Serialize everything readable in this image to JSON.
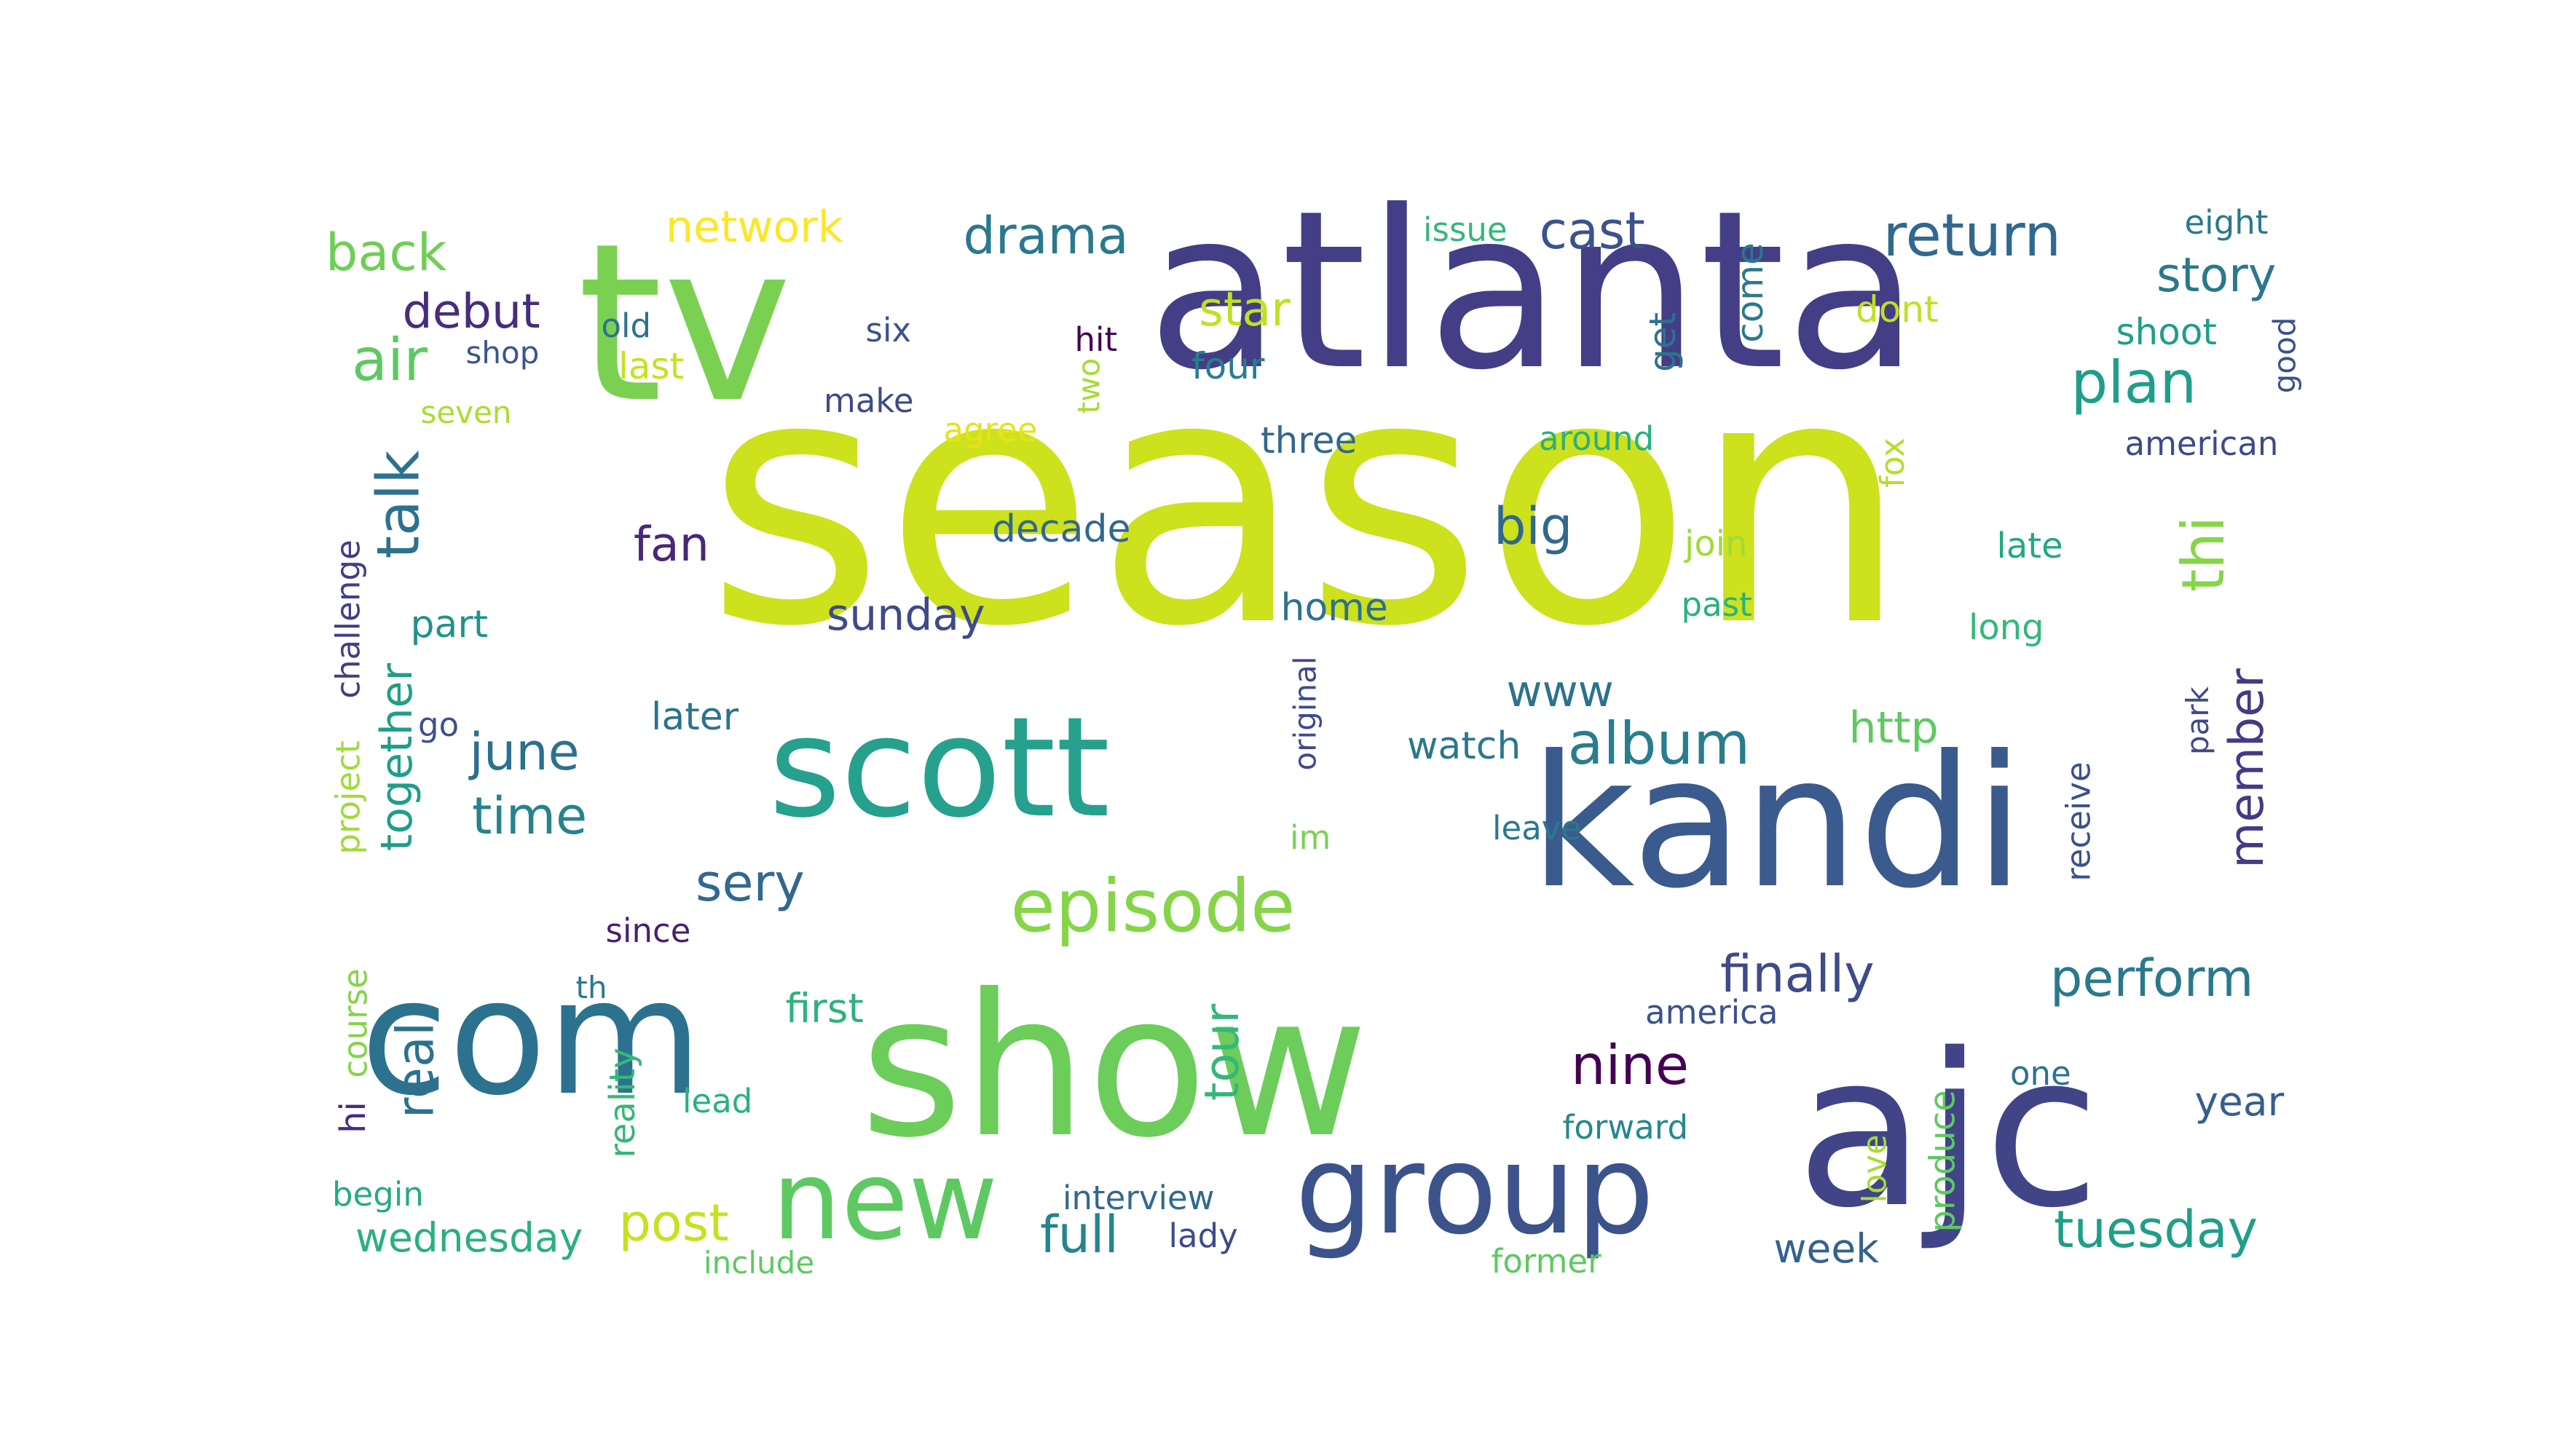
{
  "words": [
    {
      "text": "season",
      "color": "#cde11d"
    },
    {
      "text": "atlanta",
      "color": "#433e85"
    },
    {
      "text": "tv",
      "color": "#7ad151"
    },
    {
      "text": "show",
      "color": "#6ccd5a"
    },
    {
      "text": "kandi",
      "color": "#3b5a8d"
    },
    {
      "text": "ajc",
      "color": "#414487"
    },
    {
      "text": "scott",
      "color": "#25a18e"
    },
    {
      "text": "com",
      "color": "#2c728e"
    },
    {
      "text": "group",
      "color": "#3b528b"
    },
    {
      "text": "new",
      "color": "#5ec962"
    },
    {
      "text": "episode",
      "color": "#86d549"
    },
    {
      "text": "return",
      "color": "#31688e"
    },
    {
      "text": "drama",
      "color": "#2a788e"
    },
    {
      "text": "cast",
      "color": "#3b528b"
    },
    {
      "text": "network",
      "color": "#fde725"
    },
    {
      "text": "back",
      "color": "#6ece58"
    },
    {
      "text": "debut",
      "color": "#472d7b"
    },
    {
      "text": "air",
      "color": "#5ec962"
    },
    {
      "text": "star",
      "color": "#c2df23"
    },
    {
      "text": "story",
      "color": "#2a788e"
    },
    {
      "text": "plan",
      "color": "#1f9e89"
    },
    {
      "text": "talk",
      "color": "#2c728e"
    },
    {
      "text": "thi",
      "color": "#86d549"
    },
    {
      "text": "fan",
      "color": "#482878"
    },
    {
      "text": "big",
      "color": "#31688e"
    },
    {
      "text": "decade",
      "color": "#31688e"
    },
    {
      "text": "sunday",
      "color": "#3e4a89"
    },
    {
      "text": "home",
      "color": "#2c728e"
    },
    {
      "text": "part",
      "color": "#21918c"
    },
    {
      "text": "together",
      "color": "#1f9e89"
    },
    {
      "text": "june",
      "color": "#2d708e"
    },
    {
      "text": "time",
      "color": "#26828e"
    },
    {
      "text": "album",
      "color": "#287d8e"
    },
    {
      "text": "member",
      "color": "#443a83"
    },
    {
      "text": "http",
      "color": "#5ec962"
    },
    {
      "text": "www",
      "color": "#2c728e"
    },
    {
      "text": "sery",
      "color": "#31688e"
    },
    {
      "text": "finally",
      "color": "#3e4a89"
    },
    {
      "text": "perform",
      "color": "#2a788e"
    },
    {
      "text": "real",
      "color": "#2c728e"
    },
    {
      "text": "tour",
      "color": "#35b779"
    },
    {
      "text": "nine",
      "color": "#440154"
    },
    {
      "text": "post",
      "color": "#c8e020"
    },
    {
      "text": "full",
      "color": "#25858e"
    },
    {
      "text": "tuesday",
      "color": "#1f9e89"
    },
    {
      "text": "wednesday",
      "color": "#2ab07f"
    },
    {
      "text": "week",
      "color": "#33638d"
    },
    {
      "text": "year",
      "color": "#355f8d"
    },
    {
      "text": "first",
      "color": "#2db27d"
    },
    {
      "text": "later",
      "color": "#2c728e"
    },
    {
      "text": "since",
      "color": "#481f70"
    },
    {
      "text": "watch",
      "color": "#2a788e"
    },
    {
      "text": "leave",
      "color": "#2a788e"
    },
    {
      "text": "america",
      "color": "#3b528b"
    },
    {
      "text": "forward",
      "color": "#23898e"
    },
    {
      "text": "former",
      "color": "#5ec962"
    },
    {
      "text": "interview",
      "color": "#31688e"
    },
    {
      "text": "lady",
      "color": "#3e4a89"
    },
    {
      "text": "include",
      "color": "#5ec962"
    },
    {
      "text": "begin",
      "color": "#25ab82"
    },
    {
      "text": "lead",
      "color": "#2ab07f"
    },
    {
      "text": "reality",
      "color": "#35b779"
    },
    {
      "text": "hi",
      "color": "#472d7b"
    },
    {
      "text": "course",
      "color": "#84d44b"
    },
    {
      "text": "project",
      "color": "#a0da39"
    },
    {
      "text": "challenge",
      "color": "#433e85"
    },
    {
      "text": "go",
      "color": "#3b528b"
    },
    {
      "text": "th",
      "color": "#2a788e"
    },
    {
      "text": "im",
      "color": "#7ad151"
    },
    {
      "text": "original",
      "color": "#3e4a89"
    },
    {
      "text": "old",
      "color": "#2c728e"
    },
    {
      "text": "six",
      "color": "#3b528b"
    },
    {
      "text": "shop",
      "color": "#39568c"
    },
    {
      "text": "last",
      "color": "#c8e020"
    },
    {
      "text": "seven",
      "color": "#addc30"
    },
    {
      "text": "make",
      "color": "#3e4a89"
    },
    {
      "text": "hit",
      "color": "#440154"
    },
    {
      "text": "two",
      "color": "#a5db36"
    },
    {
      "text": "agree",
      "color": "#e5e419"
    },
    {
      "text": "four",
      "color": "#287d8e"
    },
    {
      "text": "three",
      "color": "#31688e"
    },
    {
      "text": "around",
      "color": "#2ab07f"
    },
    {
      "text": "issue",
      "color": "#35b779"
    },
    {
      "text": "come",
      "color": "#2a788e"
    },
    {
      "text": "get",
      "color": "#2c728e"
    },
    {
      "text": "dont",
      "color": "#c2df23"
    },
    {
      "text": "eight",
      "color": "#2a788e"
    },
    {
      "text": "shoot",
      "color": "#1f9e89"
    },
    {
      "text": "good",
      "color": "#3b528b"
    },
    {
      "text": "american",
      "color": "#3e4a89"
    },
    {
      "text": "fox",
      "color": "#b5de2b"
    },
    {
      "text": "join",
      "color": "#a0da39"
    },
    {
      "text": "late",
      "color": "#22a884"
    },
    {
      "text": "past",
      "color": "#2ab07f"
    },
    {
      "text": "long",
      "color": "#35b779"
    },
    {
      "text": "park",
      "color": "#3e4a89"
    },
    {
      "text": "receive",
      "color": "#3b528b"
    },
    {
      "text": "one",
      "color": "#2c728e"
    },
    {
      "text": "love",
      "color": "#a5db36"
    },
    {
      "text": "produce",
      "color": "#5ec962"
    }
  ]
}
